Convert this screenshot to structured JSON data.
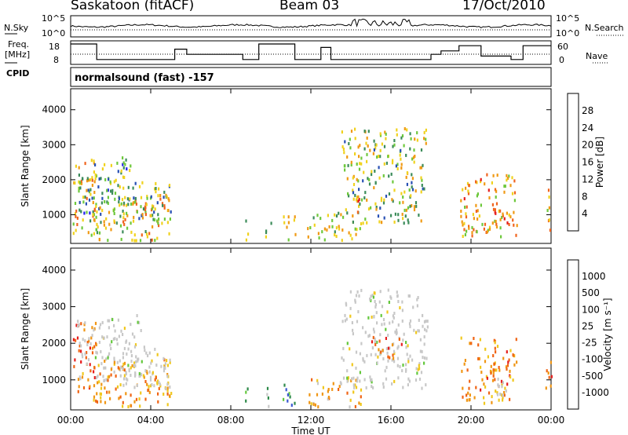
{
  "header": {
    "station": "Saskatoon (fitACF)",
    "beam": "Beam 03",
    "date": "17/Oct/2010"
  },
  "side_labels": {
    "nsky": "N.Sky",
    "nsearch": "N.Search",
    "freq_line1": "Freq.",
    "freq_line2": "[MHz]",
    "nave": "Nave",
    "cpid": "CPID",
    "cpid_value": "normalsound (fast) -157"
  },
  "noise_axis": {
    "left_top": "10^5",
    "left_bottom": "10^0",
    "right_top": "10^5",
    "right_bottom": "10^0"
  },
  "freq_axis": {
    "left_top": "18",
    "left_bottom": "8",
    "right_top": "60",
    "right_bottom": "0"
  },
  "colors": {
    "power_scale": [
      "#1e1ef0",
      "#2850b4",
      "#3c8c5a",
      "#6ec83c",
      "#f0d21e",
      "#f09a14",
      "#f0641e",
      "#e61e1e"
    ],
    "velocity_scale": [
      "#2232c0",
      "#3c5ad2",
      "#2e8a4a",
      "#64c83c",
      "#c8c8c8",
      "#f0c81e",
      "#f09614",
      "#f06414",
      "#e61e1e"
    ],
    "ground_scatter": "#c8c8c8"
  },
  "chart_data": [
    {
      "type": "heatmap",
      "name": "power",
      "ylabel": "Slant Range [km]",
      "xlabel": "Time UT",
      "x_ticks": [
        "00:00",
        "04:00",
        "08:00",
        "12:00",
        "16:00",
        "20:00",
        "00:00"
      ],
      "y_ticks": [
        "1000",
        "2000",
        "3000",
        "4000"
      ],
      "xlim_hours": [
        0,
        24
      ],
      "ylim_km": [
        180,
        4600
      ],
      "colorbar": {
        "label": "Power [dB]",
        "ticks": [
          "4",
          "8",
          "12",
          "16",
          "20",
          "24",
          "28"
        ],
        "range": [
          0,
          30
        ]
      },
      "scatter_regions": [
        {
          "t0": 0.1,
          "t1": 1.3,
          "r0": 500,
          "r1": 2600,
          "level": 0.55
        },
        {
          "t0": 0.3,
          "t1": 3.0,
          "r0": 1000,
          "r1": 2700,
          "level": 0.35
        },
        {
          "t0": 1.0,
          "t1": 5.0,
          "r0": 300,
          "r1": 1600,
          "level": 0.6
        },
        {
          "t0": 2.5,
          "t1": 5.0,
          "r0": 800,
          "r1": 2000,
          "level": 0.4
        },
        {
          "t0": 8.6,
          "t1": 8.9,
          "r0": 300,
          "r1": 900,
          "level": 0.5
        },
        {
          "t0": 9.7,
          "t1": 10.1,
          "r0": 300,
          "r1": 900,
          "level": 0.5
        },
        {
          "t0": 10.5,
          "t1": 11.2,
          "r0": 300,
          "r1": 1000,
          "level": 0.55
        },
        {
          "t0": 11.8,
          "t1": 14.5,
          "r0": 300,
          "r1": 1100,
          "level": 0.5
        },
        {
          "t0": 13.5,
          "t1": 17.8,
          "r0": 800,
          "r1": 3500,
          "level": 0.45
        },
        {
          "t0": 14.2,
          "t1": 14.8,
          "r0": 1100,
          "r1": 1600,
          "level": 0.85
        },
        {
          "t0": 19.4,
          "t1": 22.3,
          "r0": 400,
          "r1": 2200,
          "level": 0.65
        },
        {
          "t0": 21.0,
          "t1": 22.0,
          "r0": 600,
          "r1": 1200,
          "level": 0.9
        },
        {
          "t0": 23.7,
          "t1": 24.0,
          "r0": 500,
          "r1": 1800,
          "level": 0.6
        }
      ]
    },
    {
      "type": "heatmap",
      "name": "velocity",
      "ylabel": "Slant Range [km]",
      "xlabel": "Time UT",
      "x_ticks": [
        "00:00",
        "04:00",
        "08:00",
        "12:00",
        "16:00",
        "20:00",
        "00:00"
      ],
      "y_ticks": [
        "1000",
        "2000",
        "3000",
        "4000"
      ],
      "xlim_hours": [
        0,
        24
      ],
      "ylim_km": [
        180,
        4600
      ],
      "colorbar": {
        "label": "Velocity [m s⁻¹]",
        "ticks": [
          "1000",
          "500",
          "100",
          "25",
          "-25",
          "-100",
          "-500",
          "-1000"
        ],
        "range": [
          -1000,
          1000
        ]
      },
      "scatter_regions": [
        {
          "t0": 0.1,
          "t1": 1.3,
          "r0": 500,
          "r1": 2600,
          "level": -0.6
        },
        {
          "t0": 0.3,
          "t1": 3.5,
          "r0": 1000,
          "r1": 2800,
          "level": 0.0
        },
        {
          "t0": 1.0,
          "t1": 5.0,
          "r0": 300,
          "r1": 1600,
          "level": -0.4
        },
        {
          "t0": 2.5,
          "t1": 5.0,
          "r0": 800,
          "r1": 2000,
          "level": 0.0
        },
        {
          "t0": 8.6,
          "t1": 8.9,
          "r0": 300,
          "r1": 900,
          "level": 0.3
        },
        {
          "t0": 9.7,
          "t1": 10.1,
          "r0": 300,
          "r1": 900,
          "level": 0.3
        },
        {
          "t0": 10.5,
          "t1": 11.2,
          "r0": 300,
          "r1": 1000,
          "level": 0.4
        },
        {
          "t0": 11.8,
          "t1": 14.5,
          "r0": 300,
          "r1": 1100,
          "level": -0.3
        },
        {
          "t0": 13.5,
          "t1": 17.8,
          "r0": 800,
          "r1": 3500,
          "level": 0.0
        },
        {
          "t0": 15.0,
          "t1": 16.5,
          "r0": 1600,
          "r1": 2200,
          "level": -0.6
        },
        {
          "t0": 19.4,
          "t1": 22.3,
          "r0": 400,
          "r1": 2200,
          "level": -0.5
        },
        {
          "t0": 21.0,
          "t1": 22.0,
          "r0": 600,
          "r1": 1200,
          "level": 0.0
        },
        {
          "t0": 23.7,
          "t1": 24.0,
          "r0": 500,
          "r1": 1800,
          "level": -0.6
        }
      ]
    }
  ]
}
